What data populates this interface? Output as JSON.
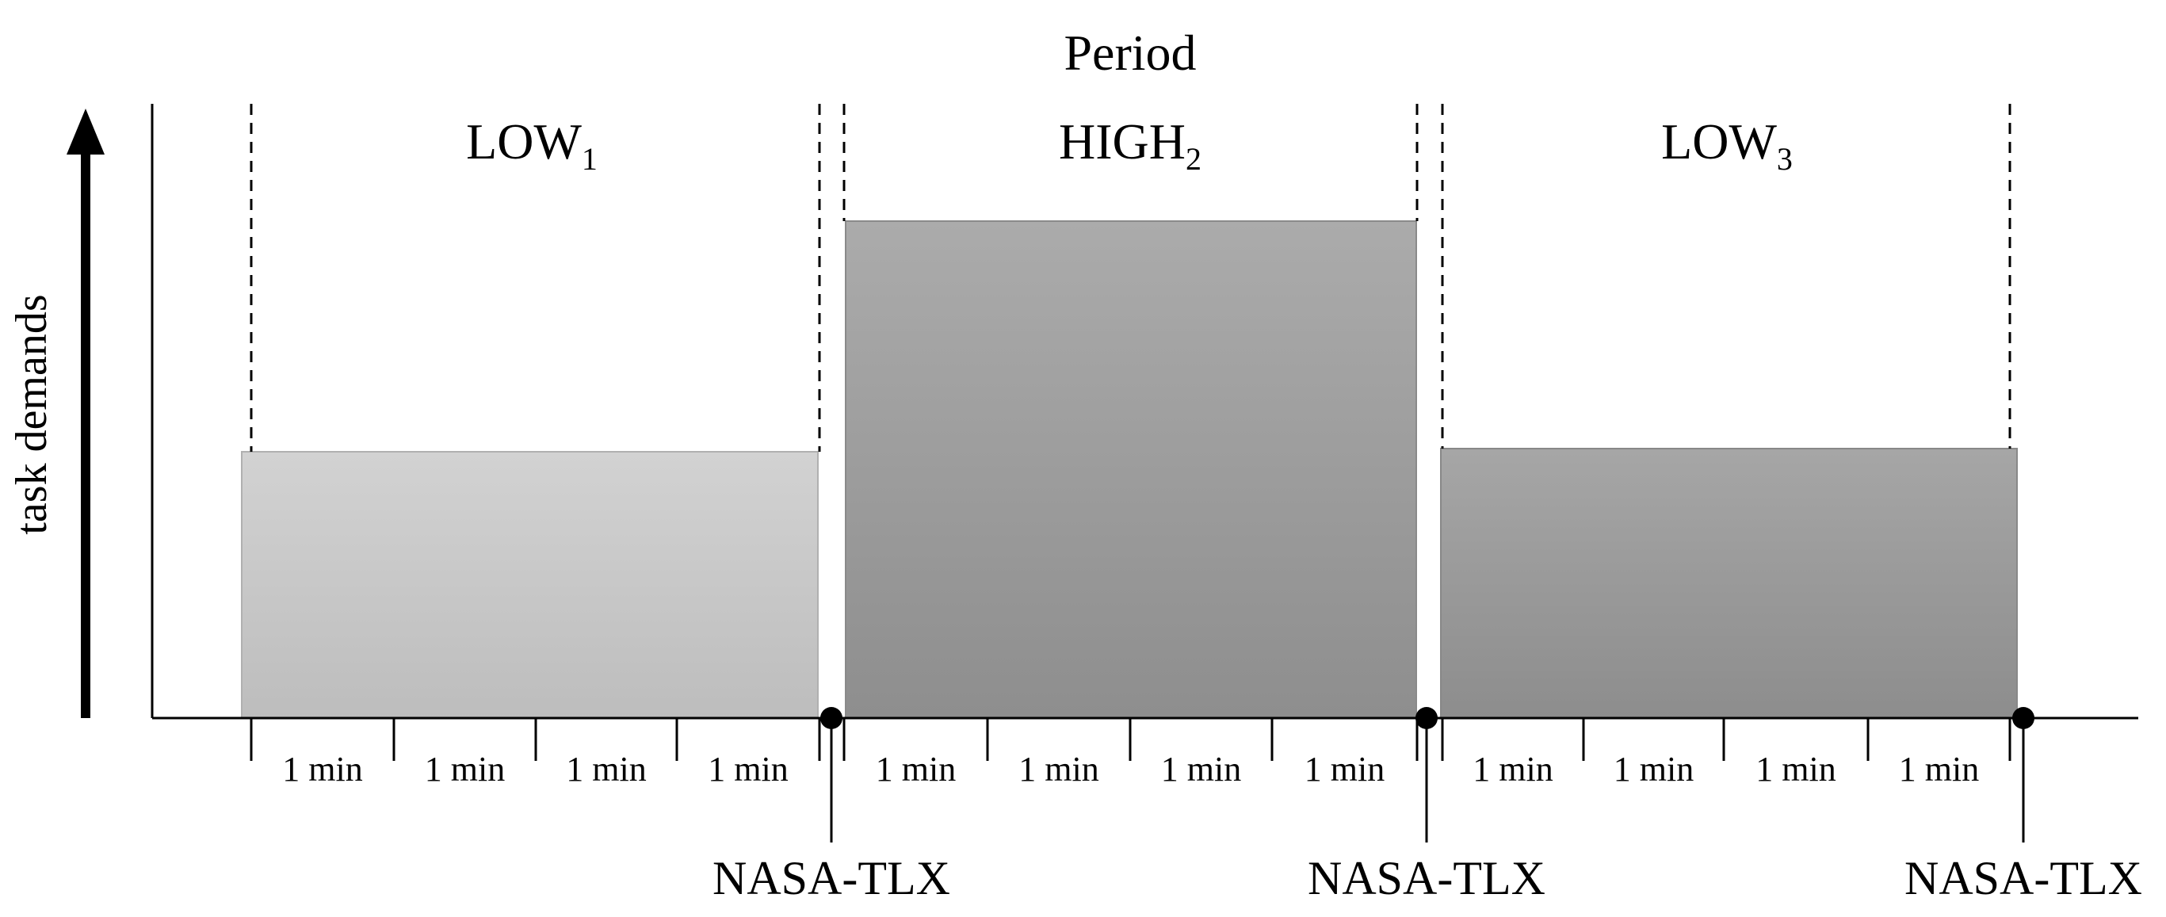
{
  "title": "Period",
  "y_axis_label": "task demands",
  "periods": [
    {
      "label": "LOW",
      "subscript": "1"
    },
    {
      "label": "HIGH",
      "subscript": "2"
    },
    {
      "label": "LOW",
      "subscript": "3"
    }
  ],
  "minute_labels": [
    "1 min",
    "1 min",
    "1 min",
    "1 min",
    "1 min",
    "1 min",
    "1 min",
    "1 min",
    "1 min",
    "1 min",
    "1 min",
    "1 min"
  ],
  "measurements": [
    "NASA-TLX",
    "NASA-TLX",
    "NASA-TLX"
  ]
}
